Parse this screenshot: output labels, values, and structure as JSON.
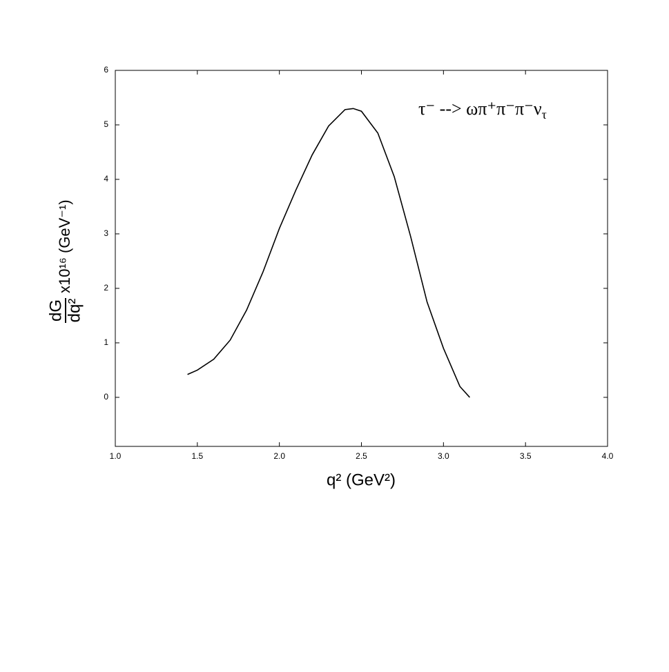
{
  "chart_data": {
    "type": "line",
    "annotation": "τ⁻ --> ωπ⁺π⁻π⁻ν",
    "annotation_subscript": "τ",
    "x_label": "q² (GeV²)",
    "y_label_numerator": "dG",
    "y_label_denominator": "dq²",
    "y_label_rest": "x10¹⁶  (GeV⁻¹)",
    "x": [
      1.44,
      1.5,
      1.6,
      1.7,
      1.8,
      1.9,
      2.0,
      2.1,
      2.2,
      2.3,
      2.4,
      2.45,
      2.5,
      2.6,
      2.7,
      2.8,
      2.9,
      3.0,
      3.1,
      3.16
    ],
    "series": [
      {
        "color": "#000000",
        "values": [
          0.42,
          0.5,
          0.7,
          1.05,
          1.6,
          2.3,
          3.1,
          3.8,
          4.45,
          4.98,
          5.28,
          5.3,
          5.25,
          4.85,
          4.05,
          2.95,
          1.75,
          0.9,
          0.2,
          0.0
        ]
      }
    ],
    "xlim": [
      1.0,
      4.0
    ],
    "xticks": [
      {
        "value": 1.0,
        "label": "1.0"
      },
      1.5,
      {
        "value": 2.0,
        "label": "2.0"
      },
      2.5,
      {
        "value": 3.0,
        "label": "3.0"
      },
      3.5,
      {
        "value": 4.0,
        "label": "4.0"
      }
    ],
    "ylim": [
      -0.9,
      6
    ],
    "yticks": [
      0,
      1,
      2,
      3,
      4,
      5,
      6
    ]
  }
}
